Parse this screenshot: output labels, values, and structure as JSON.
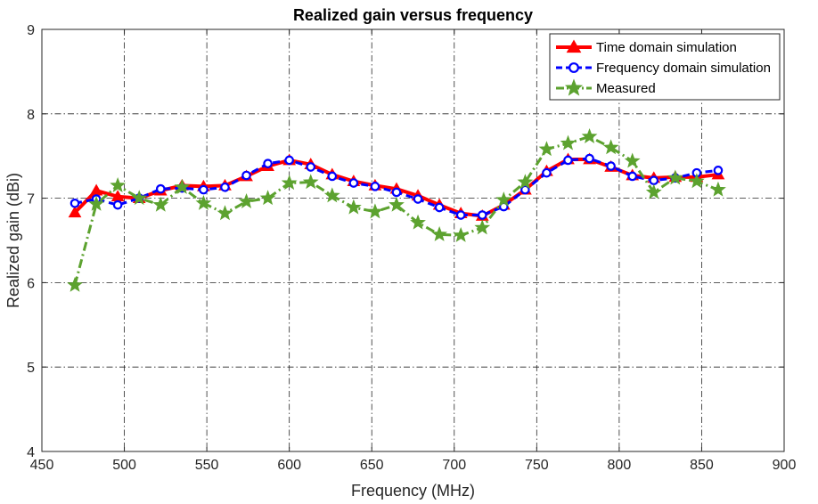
{
  "chart_data": {
    "type": "line",
    "title": "Realized gain versus frequency",
    "xlabel": "Frequency (MHz)",
    "ylabel": "Realized gain (dBi)",
    "xlim": [
      450,
      900
    ],
    "ylim": [
      4,
      9
    ],
    "xticks": [
      450,
      500,
      550,
      600,
      650,
      700,
      750,
      800,
      850,
      900
    ],
    "yticks": [
      4,
      5,
      6,
      7,
      8,
      9
    ],
    "grid": true,
    "legend_position": "top-right",
    "series": [
      {
        "name": "Time domain simulation",
        "color": "#ff0000",
        "line_style": "solid",
        "marker": "triangle",
        "x": [
          470,
          483,
          496,
          509,
          522,
          535,
          548,
          561,
          574,
          587,
          600,
          613,
          626,
          639,
          652,
          665,
          678,
          691,
          704,
          717,
          730,
          743,
          756,
          769,
          782,
          795,
          808,
          821,
          834,
          847,
          860
        ],
        "y": [
          6.83,
          7.09,
          7.02,
          7.0,
          7.09,
          7.15,
          7.14,
          7.15,
          7.26,
          7.38,
          7.45,
          7.4,
          7.28,
          7.2,
          7.15,
          7.11,
          7.03,
          6.92,
          6.82,
          6.79,
          6.92,
          7.1,
          7.32,
          7.46,
          7.46,
          7.37,
          7.27,
          7.24,
          7.25,
          7.25,
          7.28
        ]
      },
      {
        "name": "Frequency domain simulation",
        "color": "#0000ff",
        "line_style": "dashed",
        "marker": "circle",
        "x": [
          470,
          483,
          496,
          509,
          522,
          535,
          548,
          561,
          574,
          587,
          600,
          613,
          626,
          639,
          652,
          665,
          678,
          691,
          704,
          717,
          730,
          743,
          756,
          769,
          782,
          795,
          808,
          821,
          834,
          847,
          860
        ],
        "y": [
          6.94,
          6.99,
          6.92,
          7.0,
          7.11,
          7.12,
          7.1,
          7.13,
          7.27,
          7.41,
          7.45,
          7.37,
          7.26,
          7.18,
          7.14,
          7.07,
          6.99,
          6.89,
          6.8,
          6.8,
          6.9,
          7.1,
          7.3,
          7.45,
          7.47,
          7.38,
          7.26,
          7.21,
          7.24,
          7.3,
          7.33
        ]
      },
      {
        "name": "Measured",
        "color": "#5ca22f",
        "line_style": "dashdot",
        "marker": "star",
        "x": [
          470,
          483,
          496,
          509,
          522,
          535,
          548,
          561,
          574,
          587,
          600,
          613,
          626,
          639,
          652,
          665,
          678,
          691,
          704,
          717,
          730,
          743,
          756,
          769,
          782,
          795,
          808,
          821,
          834,
          847,
          860
        ],
        "y": [
          5.97,
          6.93,
          7.15,
          7.0,
          6.92,
          7.13,
          6.94,
          6.82,
          6.96,
          7.0,
          7.18,
          7.19,
          7.03,
          6.89,
          6.84,
          6.92,
          6.71,
          6.57,
          6.56,
          6.65,
          6.98,
          7.19,
          7.58,
          7.65,
          7.73,
          7.6,
          7.44,
          7.07,
          7.24,
          7.2,
          7.1
        ]
      }
    ]
  }
}
